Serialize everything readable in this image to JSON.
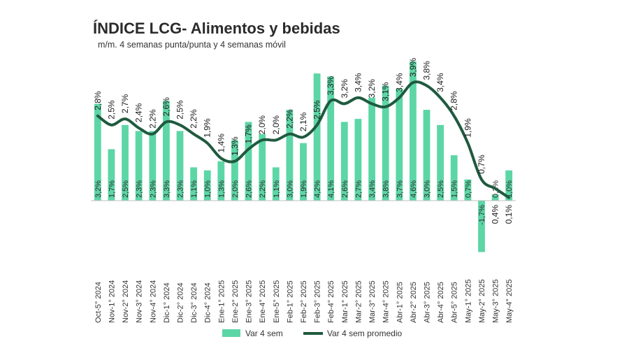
{
  "chart_data": {
    "type": "bar",
    "title": "ÍNDICE LCG- Alimentos y bebidas",
    "subtitle": "m/m. 4 semanas punta/punta y 4 semanas móvil",
    "xlabel": "",
    "ylabel": "",
    "legend_position": "bottom",
    "colors": {
      "bar": "#5dd6a6",
      "line": "#1f5a3f"
    },
    "categories": [
      "Oct-5° 2024",
      "Nov-1° 2024",
      "Nov-2° 2024",
      "Nov-3° 2024",
      "Nov-4° 2024",
      "Dic-1° 2024",
      "Dic-2° 2024",
      "Dic-3° 2024",
      "Dic-4° 2024",
      "Ene-1° 2025",
      "Ene-2° 2025",
      "Ene-3° 2025",
      "Ene-4° 2025",
      "Ene-5° 2025",
      "Feb-1° 2025",
      "Feb-2° 2025",
      "Feb-3° 2025",
      "Feb-4° 2025",
      "Mar-1° 2025",
      "Mar-2° 2025",
      "Mar-3° 2025",
      "Mar-4° 2025",
      "Abr-1° 2025",
      "Abr-2° 2025",
      "Abr-3° 2025",
      "Abr-4° 2025",
      "Abr-5° 2025",
      "May-1° 2025",
      "May-2° 2025",
      "May-3° 2025",
      "May-4° 2025"
    ],
    "series": [
      {
        "name": "Var 4 sem",
        "kind": "bar",
        "values": [
          3.2,
          1.7,
          2.5,
          2.3,
          2.3,
          3.3,
          2.3,
          1.1,
          1.0,
          1.3,
          2.0,
          2.6,
          2.2,
          1.1,
          3.0,
          1.9,
          4.2,
          4.1,
          2.6,
          2.7,
          3.4,
          3.8,
          3.7,
          4.6,
          3.0,
          2.5,
          1.5,
          0.7,
          -1.7,
          0.2,
          1.0
        ],
        "labels": [
          "3,2%",
          "1,7%",
          "2,5%",
          "2,3%",
          "2,3%",
          "3,3%",
          "2,3%",
          "1,1%",
          "1,0%",
          "1,3%",
          "2,0%",
          "2,6%",
          "2,2%",
          "1,1%",
          "3,0%",
          "1,9%",
          "4,2%",
          "4,1%",
          "2,6%",
          "2,7%",
          "3,4%",
          "3,8%",
          "3,7%",
          "4,6%",
          "3,0%",
          "2,5%",
          "1,5%",
          "0,7%",
          "-1,7%",
          "0,2%",
          "1,0%"
        ]
      },
      {
        "name": "Var 4 sem promedio",
        "kind": "line",
        "values": [
          2.8,
          2.5,
          2.7,
          2.4,
          2.2,
          2.6,
          2.5,
          2.2,
          1.9,
          1.4,
          1.3,
          1.7,
          2.0,
          2.0,
          2.2,
          2.1,
          2.5,
          3.3,
          3.2,
          3.4,
          3.2,
          3.1,
          3.4,
          3.9,
          3.8,
          3.4,
          2.8,
          1.9,
          0.7,
          0.4,
          0.1
        ],
        "labels": [
          "2,8%",
          "2,5%",
          "2,7%",
          "2,4%",
          "2,2%",
          "2,6%",
          "2,5%",
          "2,2%",
          "1,9%",
          "1,4%",
          "1,3%",
          "1,7%",
          "2,0%",
          "2,0%",
          "2,2%",
          "2,1%",
          "2,5%",
          "3,3%",
          "3,2%",
          "3,4%",
          "3,2%",
          "3,1%",
          "3,4%",
          "3,9%",
          "3,8%",
          "3,4%",
          "2,8%",
          "1,9%",
          "0,7%",
          "0,4%",
          "0,1%"
        ]
      }
    ],
    "ylim": [
      -1.8,
      4.8
    ],
    "grid": false
  }
}
